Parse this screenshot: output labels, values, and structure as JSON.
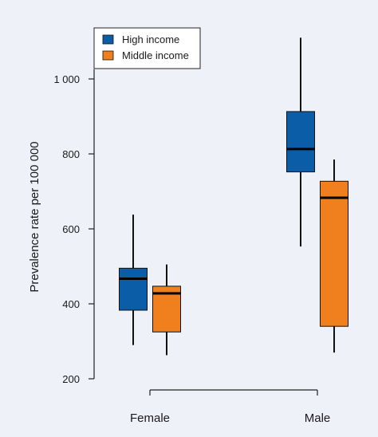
{
  "chart_data": {
    "type": "boxplot",
    "ylabel": "Prevalence rate per 100 000",
    "ylim": [
      200,
      1100
    ],
    "y_ticks": [
      {
        "value": 200,
        "label": "200"
      },
      {
        "value": 400,
        "label": "400"
      },
      {
        "value": 600,
        "label": "600"
      },
      {
        "value": 800,
        "label": "800"
      },
      {
        "value": 1000,
        "label": "1 000"
      }
    ],
    "categories": [
      "Female",
      "Male"
    ],
    "legend": {
      "position": "top-left",
      "entries": [
        {
          "name": "High income",
          "color": "#0b5da8"
        },
        {
          "name": "Middle income",
          "color": "#f07f1e"
        }
      ]
    },
    "series": [
      {
        "name": "High income",
        "color": "#0b5da8",
        "boxes": [
          {
            "category": "Female",
            "min": 290,
            "q1": 383,
            "median": 467,
            "q3": 495,
            "max": 638
          },
          {
            "category": "Male",
            "min": 553,
            "q1": 752,
            "median": 813,
            "q3": 913,
            "max": 1110
          }
        ]
      },
      {
        "name": "Middle income",
        "color": "#f07f1e",
        "boxes": [
          {
            "category": "Female",
            "min": 263,
            "q1": 325,
            "median": 428,
            "q3": 447,
            "max": 505
          },
          {
            "category": "Male",
            "min": 270,
            "q1": 340,
            "median": 683,
            "q3": 727,
            "max": 785
          }
        ]
      }
    ]
  }
}
